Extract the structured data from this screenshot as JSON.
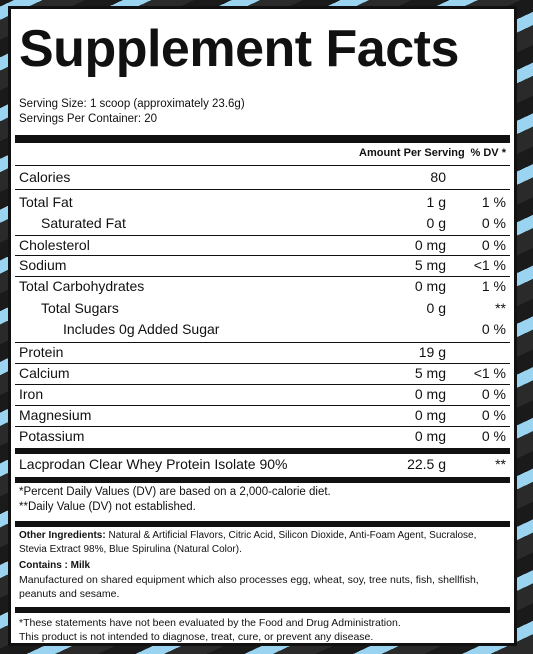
{
  "title": "Supplement Facts",
  "serving_size": "Serving Size: 1 scoop (approximately 23.6g)",
  "servings_per_container": "Servings Per Container: 20",
  "header": {
    "amount": "Amount Per Serving",
    "dv": "% DV *"
  },
  "rows": [
    {
      "name": "Calories",
      "amount": "80",
      "dv": ""
    },
    {
      "name": "Total Fat",
      "amount": "1 g",
      "dv": "1 %"
    },
    {
      "name": "Saturated Fat",
      "amount": "0 g",
      "dv": "0 %"
    },
    {
      "name": "Cholesterol",
      "amount": "0 mg",
      "dv": "0 %"
    },
    {
      "name": "Sodium",
      "amount": "5 mg",
      "dv": "<1 %"
    },
    {
      "name": "Total Carbohydrates",
      "amount": "0 mg",
      "dv": "1 %"
    },
    {
      "name": "Total Sugars",
      "amount": "0 g",
      "dv": "**"
    },
    {
      "name": "Includes 0g Added Sugar",
      "amount": "",
      "dv": "0 %"
    },
    {
      "name": "Protein",
      "amount": "19 g",
      "dv": ""
    },
    {
      "name": "Calcium",
      "amount": "5 mg",
      "dv": "<1 %"
    },
    {
      "name": "Iron",
      "amount": "0 mg",
      "dv": "0 %"
    },
    {
      "name": "Magnesium",
      "amount": "0 mg",
      "dv": "0 %"
    },
    {
      "name": "Potassium",
      "amount": "0 mg",
      "dv": "0 %"
    },
    {
      "name": "Lacprodan  Clear Whey Protein Isolate 90%",
      "amount": "22.5 g",
      "dv": "**"
    }
  ],
  "footnote_1": "*Percent Daily Values (DV) are based on a 2,000-calorie diet.",
  "footnote_2": "**Daily Value (DV) not established.",
  "other_ingredients_label": "Other Ingredients:",
  "other_ingredients": "Natural & Artificial Flavors, Citric Acid, Silicon Dioxide, Anti-Foam Agent, Sucralose, Stevia Extract 98%, Blue Spirulina (Natural Color).",
  "contains": "Contains : Milk",
  "manufactured": "Manufactured on shared equipment which also processes egg, wheat, soy, tree nuts, fish, shellfish, peanuts and sesame.",
  "disclaimer_1": "*These statements have not been evaluated by the Food and Drug Administration.",
  "disclaimer_2": "This product is not intended to diagnose, treat, cure, or prevent any disease."
}
